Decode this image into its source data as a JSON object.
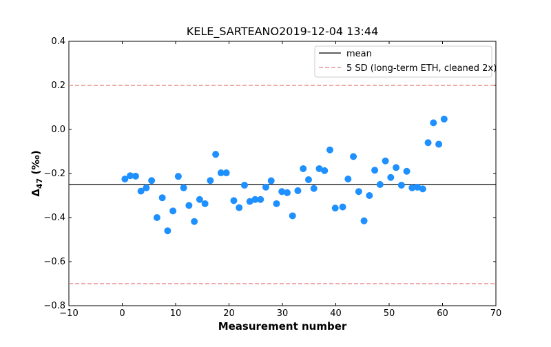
{
  "chart_data": {
    "type": "scatter",
    "title": "KELE_SARTEANO2019-12-04 13:44",
    "xlabel": "Measurement number",
    "ylabel": {
      "symbol": "Δ",
      "subscript": "47",
      "unit": " (‰)"
    },
    "xlim": [
      -10,
      70
    ],
    "ylim": [
      -0.8,
      0.4
    ],
    "xticks": [
      -10,
      0,
      10,
      20,
      30,
      40,
      50,
      60,
      70
    ],
    "yticks": [
      -0.8,
      -0.6,
      -0.4,
      -0.2,
      0.0,
      0.2,
      0.4
    ],
    "xtick_labels": [
      "−10",
      "0",
      "10",
      "20",
      "30",
      "40",
      "50",
      "60",
      "70"
    ],
    "ytick_labels": [
      "−0.8",
      "−0.6",
      "−0.4",
      "−0.2",
      "0.0",
      "0.2",
      "0.4"
    ],
    "grid": false,
    "legend_position": "top-right",
    "series": [
      {
        "kind": "points",
        "color": "#1e90ff",
        "x": [
          0.5,
          1.5,
          2.5,
          3.5,
          4.5,
          5.5,
          6.5,
          7.5,
          8.5,
          9.5,
          10.5,
          11.5,
          12.5,
          13.5,
          14.5,
          15.5,
          16.5,
          17.5,
          18.5,
          19.5,
          20.9,
          21.9,
          22.9,
          23.9,
          24.9,
          25.9,
          26.9,
          27.9,
          28.9,
          29.9,
          30.9,
          31.9,
          32.9,
          33.9,
          34.9,
          35.9,
          36.9,
          37.9,
          38.9,
          39.9,
          41.3,
          42.3,
          43.3,
          44.3,
          45.3,
          46.3,
          47.3,
          48.3,
          49.3,
          50.3,
          51.3,
          52.3,
          53.3,
          54.3,
          55.3,
          56.3,
          57.3,
          58.3,
          59.3,
          60.3
        ],
        "y": [
          -0.225,
          -0.21,
          -0.212,
          -0.28,
          -0.265,
          -0.232,
          -0.4,
          -0.31,
          -0.46,
          -0.37,
          -0.213,
          -0.265,
          -0.345,
          -0.418,
          -0.318,
          -0.337,
          -0.232,
          -0.113,
          -0.197,
          -0.197,
          -0.323,
          -0.355,
          -0.253,
          -0.327,
          -0.318,
          -0.318,
          -0.262,
          -0.233,
          -0.337,
          -0.282,
          -0.287,
          -0.392,
          -0.278,
          -0.178,
          -0.228,
          -0.268,
          -0.178,
          -0.187,
          -0.093,
          -0.357,
          -0.352,
          -0.225,
          -0.123,
          -0.282,
          -0.415,
          -0.3,
          -0.185,
          -0.25,
          -0.143,
          -0.218,
          -0.173,
          -0.253,
          -0.19,
          -0.265,
          -0.262,
          -0.27,
          -0.06,
          0.03,
          -0.067,
          0.047
        ]
      },
      {
        "name": "mean",
        "kind": "hline",
        "value": -0.25,
        "color": "#000000",
        "dash": "solid"
      },
      {
        "name": "5 SD (long-term ETH, cleaned 2x)",
        "kind": "hlines",
        "values": [
          0.2,
          -0.7
        ],
        "color": "#e89292",
        "dash": "dashed"
      }
    ]
  }
}
